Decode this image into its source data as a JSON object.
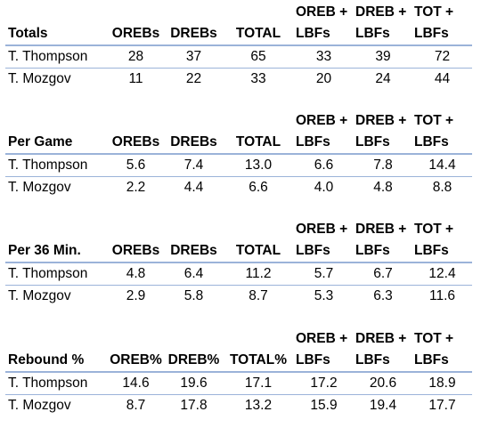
{
  "tables": [
    {
      "title": "Totals",
      "headers": [
        "OREBs",
        "DREBs",
        "TOTAL"
      ],
      "multi": [
        [
          "OREB +",
          "LBFs"
        ],
        [
          "DREB +",
          "LBFs"
        ],
        [
          "TOT +",
          "LBFs"
        ]
      ],
      "rows": [
        [
          "T. Thompson",
          "28",
          "37",
          "65",
          "33",
          "39",
          "72"
        ],
        [
          "T. Mozgov",
          "11",
          "22",
          "33",
          "20",
          "24",
          "44"
        ]
      ]
    },
    {
      "title": "Per Game",
      "headers": [
        "OREBs",
        "DREBs",
        "TOTAL"
      ],
      "multi": [
        [
          "OREB +",
          "LBFs"
        ],
        [
          "DREB +",
          "LBFs"
        ],
        [
          "TOT +",
          "LBFs"
        ]
      ],
      "rows": [
        [
          "T. Thompson",
          "5.6",
          "7.4",
          "13.0",
          "6.6",
          "7.8",
          "14.4"
        ],
        [
          "T. Mozgov",
          "2.2",
          "4.4",
          "6.6",
          "4.0",
          "4.8",
          "8.8"
        ]
      ]
    },
    {
      "title": "Per 36 Min.",
      "headers": [
        "OREBs",
        "DREBs",
        "TOTAL"
      ],
      "multi": [
        [
          "OREB +",
          "LBFs"
        ],
        [
          "DREB +",
          "LBFs"
        ],
        [
          "TOT +",
          "LBFs"
        ]
      ],
      "rows": [
        [
          "T. Thompson",
          "4.8",
          "6.4",
          "11.2",
          "5.7",
          "6.7",
          "12.4"
        ],
        [
          "T. Mozgov",
          "2.9",
          "5.8",
          "8.7",
          "5.3",
          "6.3",
          "11.6"
        ]
      ]
    },
    {
      "title": "Rebound %",
      "headers": [
        "OREB%",
        "DREB%",
        "TOTAL%"
      ],
      "multi": [
        [
          "OREB +",
          "LBFs"
        ],
        [
          "DREB +",
          "LBFs"
        ],
        [
          "TOT +",
          "LBFs"
        ]
      ],
      "rows": [
        [
          "T. Thompson",
          "14.6",
          "19.6",
          "17.1",
          "17.2",
          "20.6",
          "18.9"
        ],
        [
          "T. Mozgov",
          "8.7",
          "17.8",
          "13.2",
          "15.9",
          "19.4",
          "17.7"
        ]
      ]
    }
  ]
}
